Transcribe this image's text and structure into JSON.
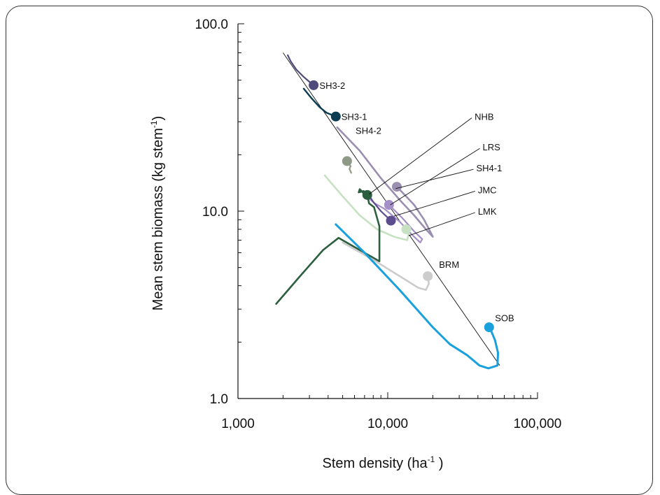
{
  "chart_data": {
    "type": "line",
    "xlabel": "Stem density (ha",
    "xlabel_sup": "-1",
    "xlabel_end": " )",
    "ylabel": "Mean stem biomass (kg stem",
    "ylabel_sup": "-1",
    "ylabel_end": ")",
    "xscale": "log",
    "yscale": "log",
    "xlim": [
      1000,
      100000
    ],
    "ylim": [
      1,
      100
    ],
    "x_tick_labels": [
      "1,000",
      "10,000",
      "100,000"
    ],
    "y_tick_labels": [
      "1.0",
      "10.0",
      "100.0"
    ],
    "reference_line": [
      [
        2000,
        70
      ],
      [
        56000,
        1.5
      ]
    ],
    "series": [
      {
        "name": "SH3-2",
        "color": "#4e4a7c",
        "width": 2.2,
        "points": [
          [
            2150,
            68
          ],
          [
            2250,
            63
          ],
          [
            2450,
            57
          ],
          [
            2750,
            52
          ],
          [
            3000,
            49
          ],
          [
            3200,
            47
          ]
        ],
        "marker": [
          3200,
          47
        ]
      },
      {
        "name": "SH3-1",
        "color": "#0b3c52",
        "width": 2.4,
        "points": [
          [
            2750,
            45
          ],
          [
            3100,
            40
          ],
          [
            3500,
            36
          ],
          [
            3900,
            33.5
          ],
          [
            4500,
            32
          ]
        ],
        "marker": [
          4500,
          32
        ]
      },
      {
        "name": "SH4-2",
        "color": "#8e9a86",
        "width": 2.2,
        "points": [
          [
            5700,
            16
          ],
          [
            5550,
            16.8
          ],
          [
            5650,
            17.4
          ],
          [
            5350,
            18.5
          ]
        ],
        "marker": [
          5350,
          18.5
        ]
      },
      {
        "name": "NHB",
        "color": "#9a8fb1",
        "width": 2.6,
        "points": [
          [
            4600,
            28
          ],
          [
            6500,
            21
          ],
          [
            9000,
            15
          ],
          [
            12000,
            11.5
          ],
          [
            15000,
            9.5
          ],
          [
            18000,
            8
          ],
          [
            20000,
            7.3
          ],
          [
            19500,
            7.6
          ],
          [
            17500,
            9
          ],
          [
            15000,
            10.8
          ],
          [
            13000,
            12.2
          ],
          [
            11500,
            13.5
          ]
        ],
        "marker": [
          11500,
          13.5
        ]
      },
      {
        "name": "SH4-1",
        "color": "#a58fc8",
        "width": 2.2,
        "points": [
          [
            7200,
            12
          ],
          [
            8200,
            11
          ],
          [
            9500,
            10.3
          ],
          [
            12000,
            8.8
          ],
          [
            14500,
            7.5
          ],
          [
            16500,
            6.8
          ],
          [
            17000,
            7.1
          ],
          [
            15000,
            7.8
          ],
          [
            12500,
            9.2
          ],
          [
            10200,
            10.8
          ]
        ],
        "marker": [
          10200,
          10.8
        ]
      },
      {
        "name": "JMC",
        "color": "#5b4d8e",
        "width": 2.2,
        "points": [
          [
            7300,
            12.5
          ],
          [
            8000,
            11.2
          ],
          [
            9000,
            10
          ],
          [
            10500,
            8.9
          ]
        ],
        "marker": [
          10500,
          8.9
        ]
      },
      {
        "name": "LMK",
        "color": "#c6e2c2",
        "width": 2.6,
        "points": [
          [
            3800,
            15.5
          ],
          [
            5000,
            12
          ],
          [
            6500,
            9.5
          ],
          [
            8500,
            8
          ],
          [
            11000,
            7.3
          ],
          [
            13500,
            7
          ],
          [
            13800,
            7.6
          ],
          [
            13300,
            8
          ]
        ],
        "marker": [
          13300,
          8
        ]
      },
      {
        "name": "LRS",
        "color": "#2b5f3e",
        "width": 2.6,
        "points": [
          [
            1800,
            3.2
          ],
          [
            2600,
            4.5
          ],
          [
            3700,
            6.2
          ],
          [
            4700,
            7.2
          ],
          [
            6500,
            6.2
          ],
          [
            8800,
            5.4
          ],
          [
            8800,
            8.3
          ],
          [
            8100,
            10.5
          ],
          [
            7500,
            11
          ],
          [
            7300,
            12.2
          ],
          [
            6900,
            12.8
          ],
          [
            6400,
            12.6
          ],
          [
            6500,
            13.1
          ],
          [
            7000,
            12.3
          ]
        ],
        "marker": [
          7300,
          12.2
        ]
      },
      {
        "name": "BRM",
        "color": "#cccccc",
        "width": 2.6,
        "points": [
          [
            5000,
            6.8
          ],
          [
            8000,
            5.5
          ],
          [
            12000,
            4.5
          ],
          [
            16000,
            3.9
          ],
          [
            18000,
            3.8
          ],
          [
            18800,
            4.1
          ],
          [
            18500,
            4.5
          ]
        ],
        "marker": [
          18500,
          4.5
        ]
      },
      {
        "name": "SOB",
        "color": "#1aa0dc",
        "width": 3,
        "points": [
          [
            4500,
            8.5
          ],
          [
            7000,
            6
          ],
          [
            12000,
            3.8
          ],
          [
            20000,
            2.4
          ],
          [
            26000,
            1.95
          ],
          [
            34000,
            1.7
          ],
          [
            41000,
            1.5
          ],
          [
            47000,
            1.45
          ],
          [
            54000,
            1.5
          ],
          [
            54500,
            1.75
          ],
          [
            52000,
            2.05
          ],
          [
            49000,
            2.3
          ],
          [
            47500,
            2.4
          ]
        ],
        "marker": [
          47500,
          2.4
        ]
      }
    ],
    "annotations": [
      {
        "text": "SH3-2",
        "target": [
          3200,
          47
        ],
        "label_xy": [
          3500,
          47
        ],
        "align": "start"
      },
      {
        "text": "SH3-1",
        "target": [
          4500,
          32
        ],
        "label_xy": [
          4900,
          32
        ],
        "align": "start"
      },
      {
        "text": "SH4-2",
        "target": [
          5400,
          19.5
        ],
        "label_xy": [
          6100,
          27
        ],
        "align": "start"
      },
      {
        "text": "NHB",
        "target": [
          7500,
          12.3
        ],
        "label_xy": [
          38000,
          32
        ],
        "align": "start"
      },
      {
        "text": "LRS",
        "target": [
          10400,
          10.8
        ],
        "label_xy": [
          43000,
          22
        ],
        "align": "start"
      },
      {
        "text": "SH4-1",
        "target": [
          11300,
          13.2
        ],
        "label_xy": [
          39000,
          17
        ],
        "align": "start"
      },
      {
        "text": "JMC",
        "target": [
          11000,
          9.4
        ],
        "label_xy": [
          40000,
          13
        ],
        "align": "start"
      },
      {
        "text": "LMK",
        "target": [
          13800,
          7.4
        ],
        "label_xy": [
          40000,
          10
        ],
        "align": "start"
      },
      {
        "text": "BRM",
        "target": [
          19000,
          4.5
        ],
        "label_xy": [
          22000,
          5.2
        ],
        "align": "start"
      },
      {
        "text": "SOB",
        "target": [
          48000,
          2.45
        ],
        "label_xy": [
          52000,
          2.7
        ],
        "align": "start"
      }
    ]
  }
}
